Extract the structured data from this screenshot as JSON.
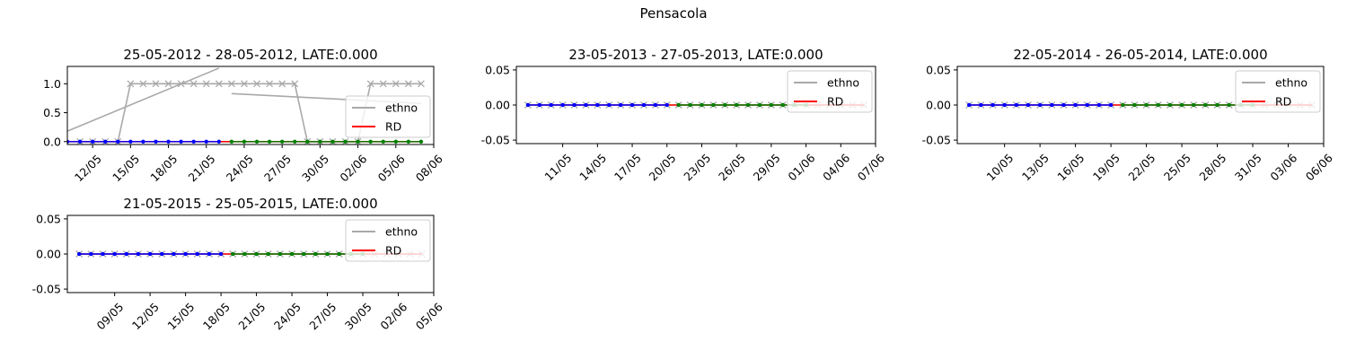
{
  "suptitle": "Pensacola",
  "legend_entries": [
    {
      "label": "ethno",
      "color": "#a9a9a9"
    },
    {
      "label": "RD",
      "color": "#ff0000"
    }
  ],
  "chart_data": [
    {
      "type": "line",
      "title": "25-05-2012 - 28-05-2012, LATE:0.000",
      "xlim": [
        "2012-05-10",
        "2012-06-08"
      ],
      "xticks": [
        "12/05",
        "15/05",
        "18/05",
        "21/05",
        "24/05",
        "27/05",
        "30/05",
        "02/06",
        "05/06",
        "08/06"
      ],
      "ylim": [
        -0.05,
        1.3
      ],
      "yticks": [
        "0.0",
        "0.5",
        "1.0"
      ],
      "legend": "center-right",
      "series": [
        {
          "name": "ethno",
          "color": "#a9a9a9",
          "marker": "x",
          "x": [
            "2012-05-11",
            "2012-05-12",
            "2012-05-13",
            "2012-05-14",
            "2012-05-15",
            "2012-05-16",
            "2012-05-17",
            "2012-05-18",
            "2012-05-19",
            "2012-05-20",
            "2012-05-21",
            "2012-05-22",
            "2012-05-23",
            "2012-05-24",
            "2012-05-25",
            "2012-05-26",
            "2012-05-27",
            "2012-05-28",
            "2012-05-29",
            "2012-05-30",
            "2012-05-31",
            "2012-06-01",
            "2012-06-02",
            "2012-06-03",
            "2012-06-04",
            "2012-06-05",
            "2012-06-06",
            "2012-06-07"
          ],
          "y": [
            0,
            0,
            0,
            0,
            1,
            1,
            1,
            1,
            1,
            1,
            1,
            1,
            1,
            1,
            1,
            1,
            1,
            1,
            0,
            0,
            0,
            0,
            0,
            1,
            1,
            1,
            1,
            1
          ]
        },
        {
          "color": "#a9a9a9",
          "x": [
            "2012-05-10",
            "2012-05-22"
          ],
          "y": [
            0.18,
            1.27
          ]
        },
        {
          "color": "#a9a9a9",
          "x": [
            "2012-05-23",
            "2012-06-07"
          ],
          "y": [
            0.83,
            0.66
          ]
        },
        {
          "name": "RD",
          "color": "#ff0000",
          "x": [
            "2012-05-10",
            "2012-06-07"
          ],
          "y": [
            0,
            0
          ]
        },
        {
          "color": "#0000ff",
          "marker": "dot",
          "x": [
            "2012-05-10",
            "2012-05-11",
            "2012-05-12",
            "2012-05-13",
            "2012-05-14",
            "2012-05-15",
            "2012-05-16",
            "2012-05-17",
            "2012-05-18",
            "2012-05-19",
            "2012-05-20",
            "2012-05-21",
            "2012-05-22"
          ],
          "y": [
            0,
            0,
            0,
            0,
            0,
            0,
            0,
            0,
            0,
            0,
            0,
            0,
            0
          ]
        },
        {
          "color": "#008000",
          "marker": "dot",
          "x": [
            "2012-05-23",
            "2012-05-24",
            "2012-05-25",
            "2012-05-26",
            "2012-05-27",
            "2012-05-28",
            "2012-05-29",
            "2012-05-30",
            "2012-05-31",
            "2012-06-01",
            "2012-06-02",
            "2012-06-03",
            "2012-06-04",
            "2012-06-05",
            "2012-06-06",
            "2012-06-07"
          ],
          "y": [
            0,
            0,
            0,
            0,
            0,
            0,
            0,
            0,
            0,
            0,
            0,
            0,
            0,
            0,
            0,
            0
          ]
        }
      ]
    },
    {
      "type": "line",
      "title": "23-05-2013 - 27-05-2013, LATE:0.000",
      "xlim": [
        "2013-05-07",
        "2013-06-07"
      ],
      "xticks": [
        "11/05",
        "14/05",
        "17/05",
        "20/05",
        "23/05",
        "26/05",
        "29/05",
        "01/06",
        "04/06",
        "07/06"
      ],
      "ylim": [
        -0.055,
        0.055
      ],
      "yticks": [
        "0.05",
        "0.00",
        "-0.05"
      ],
      "legend": "top-right",
      "series": [
        {
          "name": "ethno",
          "color": "#a9a9a9",
          "marker": "x",
          "x": [
            "2013-05-08",
            "2013-06-06"
          ],
          "y": [
            0,
            0
          ]
        },
        {
          "name": "RD",
          "color": "#ff0000",
          "x": [
            "2013-05-08",
            "2013-06-06"
          ],
          "y": [
            0,
            0
          ]
        },
        {
          "color": "#0000ff",
          "marker": "dot",
          "x": [
            "2013-05-08",
            "2013-05-09",
            "2013-05-10",
            "2013-05-11",
            "2013-05-12",
            "2013-05-13",
            "2013-05-14",
            "2013-05-15",
            "2013-05-16",
            "2013-05-17",
            "2013-05-18",
            "2013-05-19",
            "2013-05-20"
          ],
          "y": [
            0,
            0,
            0,
            0,
            0,
            0,
            0,
            0,
            0,
            0,
            0,
            0,
            0
          ]
        },
        {
          "color": "#008000",
          "marker": "dot",
          "x": [
            "2013-05-21",
            "2013-05-22",
            "2013-05-23",
            "2013-05-24",
            "2013-05-25",
            "2013-05-26",
            "2013-05-27",
            "2013-05-28",
            "2013-05-29",
            "2013-05-30",
            "2013-05-31",
            "2013-06-01"
          ],
          "y": [
            0,
            0,
            0,
            0,
            0,
            0,
            0,
            0,
            0,
            0,
            0,
            0
          ]
        }
      ]
    },
    {
      "type": "line",
      "title": "22-05-2014 - 26-05-2014, LATE:0.000",
      "xlim": [
        "2014-05-06",
        "2014-06-06"
      ],
      "xticks": [
        "10/05",
        "13/05",
        "16/05",
        "19/05",
        "22/05",
        "25/05",
        "28/05",
        "31/05",
        "03/06",
        "06/06"
      ],
      "ylim": [
        -0.055,
        0.055
      ],
      "yticks": [
        "0.05",
        "0.00",
        "-0.05"
      ],
      "legend": "top-right",
      "series": [
        {
          "name": "ethno",
          "color": "#a9a9a9",
          "marker": "x",
          "x": [
            "2014-05-07",
            "2014-06-05"
          ],
          "y": [
            0,
            0
          ]
        },
        {
          "name": "RD",
          "color": "#ff0000",
          "x": [
            "2014-05-07",
            "2014-06-05"
          ],
          "y": [
            0,
            0
          ]
        },
        {
          "color": "#0000ff",
          "marker": "dot",
          "x": [
            "2014-05-07",
            "2014-05-08",
            "2014-05-09",
            "2014-05-10",
            "2014-05-11",
            "2014-05-12",
            "2014-05-13",
            "2014-05-14",
            "2014-05-15",
            "2014-05-16",
            "2014-05-17",
            "2014-05-18",
            "2014-05-19"
          ],
          "y": [
            0,
            0,
            0,
            0,
            0,
            0,
            0,
            0,
            0,
            0,
            0,
            0,
            0
          ]
        },
        {
          "color": "#008000",
          "marker": "dot",
          "x": [
            "2014-05-20",
            "2014-05-21",
            "2014-05-22",
            "2014-05-23",
            "2014-05-24",
            "2014-05-25",
            "2014-05-26",
            "2014-05-27",
            "2014-05-28",
            "2014-05-29",
            "2014-05-30",
            "2014-05-31"
          ],
          "y": [
            0,
            0,
            0,
            0,
            0,
            0,
            0,
            0,
            0,
            0,
            0,
            0
          ]
        }
      ]
    },
    {
      "type": "line",
      "title": "21-05-2015 - 25-05-2015, LATE:0.000",
      "xlim": [
        "2015-05-05",
        "2015-06-05"
      ],
      "xticks": [
        "09/05",
        "12/05",
        "15/05",
        "18/05",
        "21/05",
        "24/05",
        "27/05",
        "30/05",
        "02/06",
        "05/06"
      ],
      "ylim": [
        -0.055,
        0.055
      ],
      "yticks": [
        "0.05",
        "0.00",
        "-0.05"
      ],
      "legend": "top-right",
      "series": [
        {
          "name": "ethno",
          "color": "#a9a9a9",
          "marker": "x",
          "x": [
            "2015-05-06",
            "2015-06-04"
          ],
          "y": [
            0,
            0
          ]
        },
        {
          "name": "RD",
          "color": "#ff0000",
          "x": [
            "2015-05-06",
            "2015-06-04"
          ],
          "y": [
            0,
            0
          ]
        },
        {
          "color": "#0000ff",
          "marker": "dot",
          "x": [
            "2015-05-06",
            "2015-05-07",
            "2015-05-08",
            "2015-05-09",
            "2015-05-10",
            "2015-05-11",
            "2015-05-12",
            "2015-05-13",
            "2015-05-14",
            "2015-05-15",
            "2015-05-16",
            "2015-05-17",
            "2015-05-18"
          ],
          "y": [
            0,
            0,
            0,
            0,
            0,
            0,
            0,
            0,
            0,
            0,
            0,
            0,
            0
          ]
        },
        {
          "color": "#008000",
          "marker": "dot",
          "x": [
            "2015-05-19",
            "2015-05-20",
            "2015-05-21",
            "2015-05-22",
            "2015-05-23",
            "2015-05-24",
            "2015-05-25",
            "2015-05-26",
            "2015-05-27",
            "2015-05-28",
            "2015-05-29",
            "2015-05-30"
          ],
          "y": [
            0,
            0,
            0,
            0,
            0,
            0,
            0,
            0,
            0,
            0,
            0,
            0
          ]
        }
      ]
    }
  ]
}
